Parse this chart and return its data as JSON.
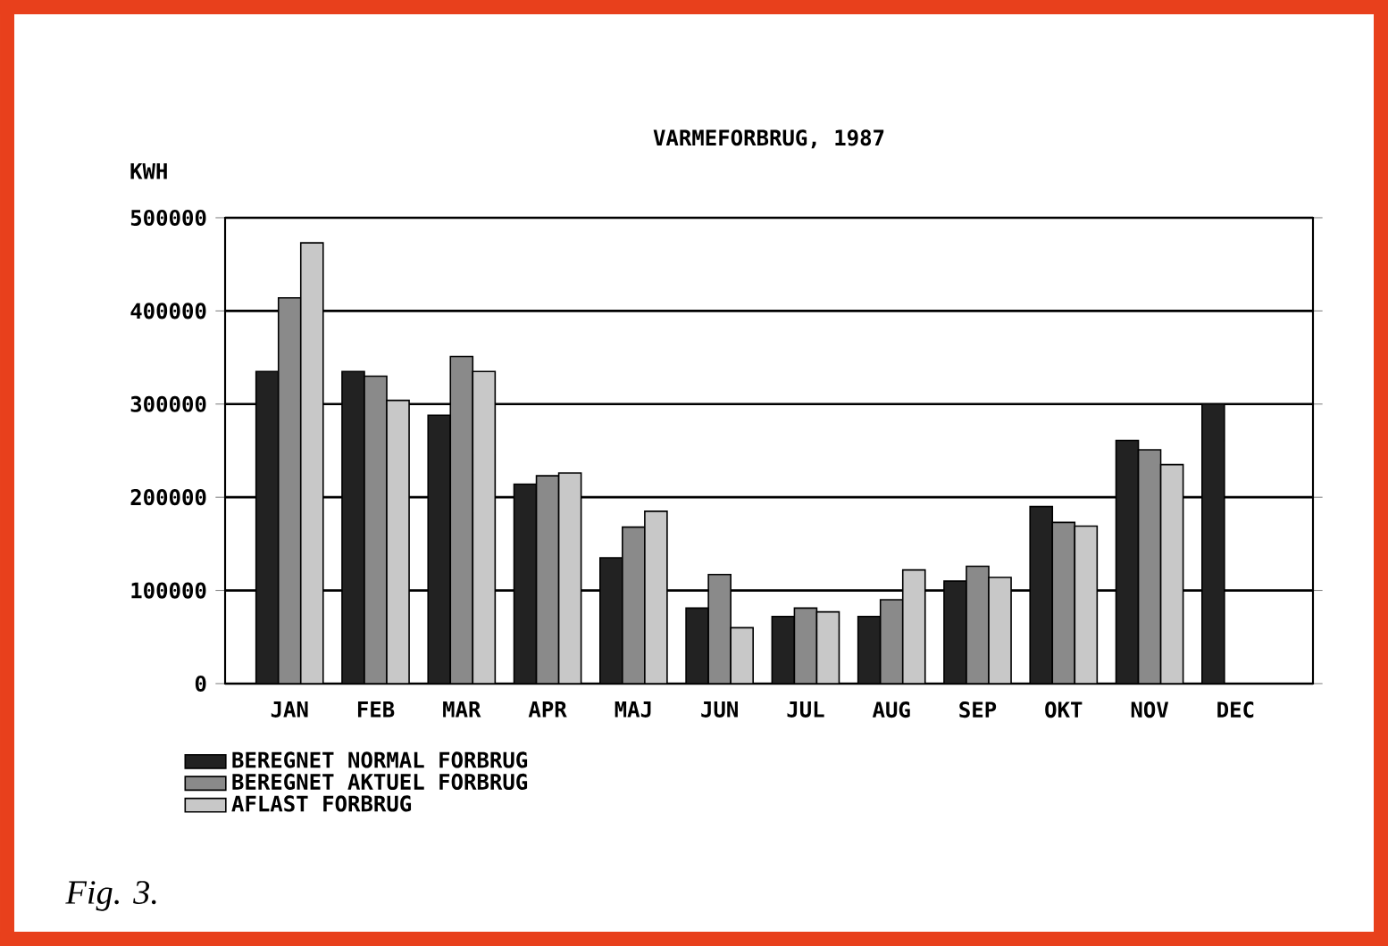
{
  "chart_data": {
    "type": "bar",
    "title": "VARMEFORBRUG, 1987",
    "ylabel": "KWH",
    "categories": [
      "JAN",
      "FEB",
      "MAR",
      "APR",
      "MAJ",
      "JUN",
      "JUL",
      "AUG",
      "SEP",
      "OKT",
      "NOV",
      "DEC"
    ],
    "series": [
      {
        "name": "BEREGNET NORMAL FORBRUG",
        "color": "#222222",
        "values": [
          335000,
          335000,
          288000,
          214000,
          135000,
          81000,
          72000,
          72000,
          110000,
          190000,
          261000,
          300000
        ]
      },
      {
        "name": "BEREGNET AKTUEL FORBRUG",
        "color": "#8a8a8a",
        "values": [
          414000,
          330000,
          351000,
          223000,
          168000,
          117000,
          81000,
          90000,
          126000,
          173000,
          251000,
          null
        ]
      },
      {
        "name": "AFLAST FORBRUG",
        "color": "#c8c8c8",
        "values": [
          473000,
          304000,
          335000,
          226000,
          185000,
          60000,
          77000,
          122000,
          114000,
          169000,
          235000,
          null
        ]
      }
    ],
    "ylim": [
      0,
      500000
    ],
    "yticks": [
      0,
      100000,
      200000,
      300000,
      400000,
      500000
    ],
    "grid": "y",
    "legend": "bottom left",
    "annotations": [
      "Fig. 3."
    ]
  }
}
